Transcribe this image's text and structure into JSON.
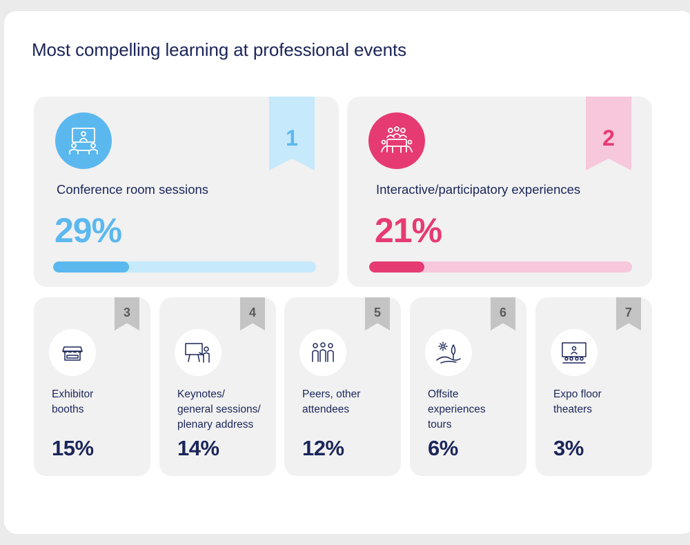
{
  "title": "Most compelling learning at professional events",
  "colors": {
    "navy": "#1b2559",
    "blue": "#5bb8ef",
    "blue_light": "#c6e9fb",
    "pink": "#e63a72",
    "pink_light": "#f7c7db",
    "ribbon_gray": "#c4c4c4"
  },
  "chart_data": {
    "type": "bar",
    "title": "Most compelling learning at professional events",
    "unit": "%",
    "categories": [
      "Conference room sessions",
      "Interactive/participatory experiences",
      "Exhibitor booths",
      "Keynotes/ general sessions/ plenary address",
      "Peers, other attendees",
      "Offsite experiences tours",
      "Expo floor theaters"
    ],
    "values": [
      29,
      21,
      15,
      14,
      12,
      6,
      3
    ],
    "ranks": [
      1,
      2,
      3,
      4,
      5,
      6,
      7
    ],
    "ylim": [
      0,
      100
    ]
  },
  "top_cards": [
    {
      "rank": "1",
      "label": "Conference room sessions",
      "percent": "29%",
      "value": 29,
      "icon": "conference-room-icon"
    },
    {
      "rank": "2",
      "label": "Interactive/participatory experiences",
      "percent": "21%",
      "value": 21,
      "icon": "meeting-table-icon"
    }
  ],
  "cards": [
    {
      "rank": "3",
      "lines": [
        "Exhibitor",
        "booths"
      ],
      "percent": "15%",
      "icon": "booth-icon"
    },
    {
      "rank": "4",
      "lines": [
        "Keynotes/",
        "general sessions/",
        "plenary address"
      ],
      "percent": "14%",
      "icon": "presenter-icon"
    },
    {
      "rank": "5",
      "lines": [
        "Peers, other",
        "attendees"
      ],
      "percent": "12%",
      "icon": "people-group-icon"
    },
    {
      "rank": "6",
      "lines": [
        "Offsite",
        "experiences",
        "tours"
      ],
      "percent": "6%",
      "icon": "landscape-icon"
    },
    {
      "rank": "7",
      "lines": [
        "Expo floor",
        "theaters"
      ],
      "percent": "3%",
      "icon": "theater-icon"
    }
  ]
}
